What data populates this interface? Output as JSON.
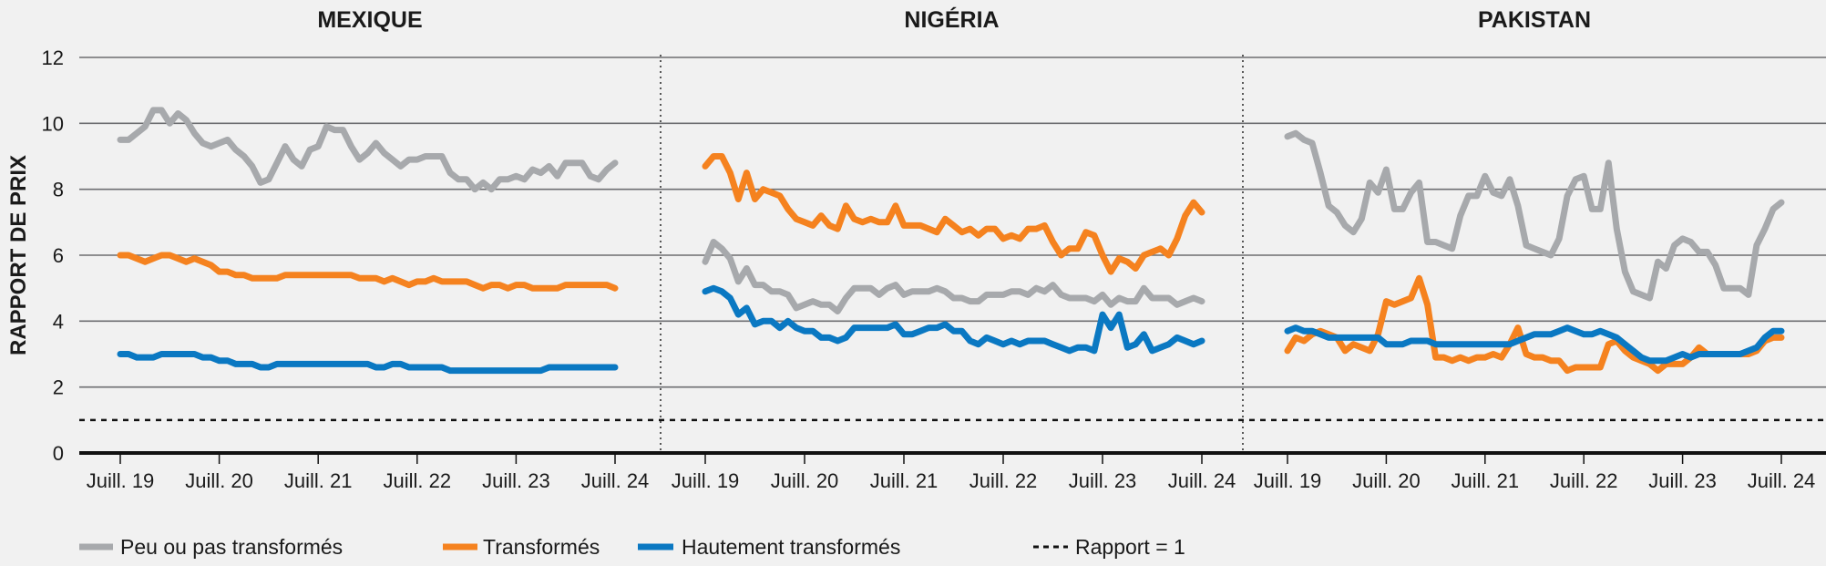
{
  "chart_data": {
    "type": "line",
    "ylabel": "RAPPORT DE PRIX",
    "ylim": [
      0,
      12
    ],
    "yticks": [
      "0",
      "2",
      "4",
      "6",
      "8",
      "10",
      "12"
    ],
    "xticks": [
      "Juill. 19",
      "Juill. 20",
      "Juill. 21",
      "Juill. 22",
      "Juill. 23",
      "Juill. 24"
    ],
    "x_unit": "monthly, index 0 = July 2019",
    "reference_line": {
      "label": "Rapport = 1",
      "value": 1
    },
    "legend": [
      "Peu ou pas transformés",
      "Transformés",
      "Hautement transformés",
      "Rapport = 1"
    ],
    "legend_placement": "bottom",
    "colors": {
      "peu": "#a7a9ac",
      "transformes": "#f5821f",
      "hautement": "#0a78c2"
    },
    "panels": [
      {
        "title": "MEXIQUE",
        "series": [
          {
            "name": "Peu ou pas transformés",
            "key": "peu",
            "values": [
              9.5,
              9.5,
              9.7,
              9.9,
              10.4,
              10.4,
              10.0,
              10.3,
              10.1,
              9.7,
              9.4,
              9.3,
              9.4,
              9.5,
              9.2,
              9.0,
              8.7,
              8.2,
              8.3,
              8.8,
              9.3,
              8.9,
              8.7,
              9.2,
              9.3,
              9.9,
              9.8,
              9.8,
              9.3,
              8.9,
              9.1,
              9.4,
              9.1,
              8.9,
              8.7,
              8.9,
              8.9,
              9.0,
              9.0,
              9.0,
              8.5,
              8.3,
              8.3,
              8.0,
              8.2,
              8.0,
              8.3,
              8.3,
              8.4,
              8.3,
              8.6,
              8.5,
              8.7,
              8.4,
              8.8,
              8.8,
              8.8,
              8.4,
              8.3,
              8.6,
              8.8
            ]
          },
          {
            "name": "Transformés",
            "key": "transformes",
            "values": [
              6.0,
              6.0,
              5.9,
              5.8,
              5.9,
              6.0,
              6.0,
              5.9,
              5.8,
              5.9,
              5.8,
              5.7,
              5.5,
              5.5,
              5.4,
              5.4,
              5.3,
              5.3,
              5.3,
              5.3,
              5.4,
              5.4,
              5.4,
              5.4,
              5.4,
              5.4,
              5.4,
              5.4,
              5.4,
              5.3,
              5.3,
              5.3,
              5.2,
              5.3,
              5.2,
              5.1,
              5.2,
              5.2,
              5.3,
              5.2,
              5.2,
              5.2,
              5.2,
              5.1,
              5.0,
              5.1,
              5.1,
              5.0,
              5.1,
              5.1,
              5.0,
              5.0,
              5.0,
              5.0,
              5.1,
              5.1,
              5.1,
              5.1,
              5.1,
              5.1,
              5.0
            ]
          },
          {
            "name": "Hautement transformés",
            "key": "hautement",
            "values": [
              3.0,
              3.0,
              2.9,
              2.9,
              2.9,
              3.0,
              3.0,
              3.0,
              3.0,
              3.0,
              2.9,
              2.9,
              2.8,
              2.8,
              2.7,
              2.7,
              2.7,
              2.6,
              2.6,
              2.7,
              2.7,
              2.7,
              2.7,
              2.7,
              2.7,
              2.7,
              2.7,
              2.7,
              2.7,
              2.7,
              2.7,
              2.6,
              2.6,
              2.7,
              2.7,
              2.6,
              2.6,
              2.6,
              2.6,
              2.6,
              2.5,
              2.5,
              2.5,
              2.5,
              2.5,
              2.5,
              2.5,
              2.5,
              2.5,
              2.5,
              2.5,
              2.5,
              2.6,
              2.6,
              2.6,
              2.6,
              2.6,
              2.6,
              2.6,
              2.6,
              2.6
            ]
          }
        ]
      },
      {
        "title": "NIGÉRIA",
        "series": [
          {
            "name": "Peu ou pas transformés",
            "key": "peu",
            "values": [
              5.8,
              6.4,
              6.2,
              5.9,
              5.2,
              5.6,
              5.1,
              5.1,
              4.9,
              4.9,
              4.8,
              4.4,
              4.5,
              4.6,
              4.5,
              4.5,
              4.3,
              4.7,
              5.0,
              5.0,
              5.0,
              4.8,
              5.0,
              5.1,
              4.8,
              4.9,
              4.9,
              4.9,
              5.0,
              4.9,
              4.7,
              4.7,
              4.6,
              4.6,
              4.8,
              4.8,
              4.8,
              4.9,
              4.9,
              4.8,
              5.0,
              4.9,
              5.1,
              4.8,
              4.7,
              4.7,
              4.7,
              4.6,
              4.8,
              4.5,
              4.7,
              4.6,
              4.6,
              5.0,
              4.7,
              4.7,
              4.7,
              4.5,
              4.6,
              4.7,
              4.6
            ]
          },
          {
            "name": "Transformés",
            "key": "transformes",
            "values": [
              8.7,
              9.0,
              9.0,
              8.5,
              7.7,
              8.5,
              7.7,
              8.0,
              7.9,
              7.8,
              7.4,
              7.1,
              7.0,
              6.9,
              7.2,
              6.9,
              6.8,
              7.5,
              7.1,
              7.0,
              7.1,
              7.0,
              7.0,
              7.5,
              6.9,
              6.9,
              6.9,
              6.8,
              6.7,
              7.1,
              6.9,
              6.7,
              6.8,
              6.6,
              6.8,
              6.8,
              6.5,
              6.6,
              6.5,
              6.8,
              6.8,
              6.9,
              6.4,
              6.0,
              6.2,
              6.2,
              6.7,
              6.6,
              6.0,
              5.5,
              5.9,
              5.8,
              5.6,
              6.0,
              6.1,
              6.2,
              6.0,
              6.5,
              7.2,
              7.6,
              7.3
            ]
          },
          {
            "name": "Hautement transformés",
            "key": "hautement",
            "values": [
              4.9,
              5.0,
              4.9,
              4.7,
              4.2,
              4.4,
              3.9,
              4.0,
              4.0,
              3.8,
              4.0,
              3.8,
              3.7,
              3.7,
              3.5,
              3.5,
              3.4,
              3.5,
              3.8,
              3.8,
              3.8,
              3.8,
              3.8,
              3.9,
              3.6,
              3.6,
              3.7,
              3.8,
              3.8,
              3.9,
              3.7,
              3.7,
              3.4,
              3.3,
              3.5,
              3.4,
              3.3,
              3.4,
              3.3,
              3.4,
              3.4,
              3.4,
              3.3,
              3.2,
              3.1,
              3.2,
              3.2,
              3.1,
              4.2,
              3.8,
              4.2,
              3.2,
              3.3,
              3.6,
              3.1,
              3.2,
              3.3,
              3.5,
              3.4,
              3.3,
              3.4
            ]
          }
        ]
      },
      {
        "title": "PAKISTAN",
        "series": [
          {
            "name": "Peu ou pas transformés",
            "key": "peu",
            "values": [
              9.6,
              9.7,
              9.5,
              9.4,
              8.5,
              7.5,
              7.3,
              6.9,
              6.7,
              7.1,
              8.2,
              7.9,
              8.6,
              7.4,
              7.4,
              7.9,
              8.2,
              6.4,
              6.4,
              6.3,
              6.2,
              7.2,
              7.8,
              7.8,
              8.4,
              7.9,
              7.8,
              8.3,
              7.5,
              6.3,
              6.2,
              6.1,
              6.0,
              6.5,
              7.8,
              8.3,
              8.4,
              7.4,
              7.4,
              8.8,
              6.8,
              5.5,
              4.9,
              4.8,
              4.7,
              5.8,
              5.6,
              6.3,
              6.5,
              6.4,
              6.1,
              6.1,
              5.7,
              5.0,
              5.0,
              5.0,
              4.8,
              6.3,
              6.8,
              7.4,
              7.6
            ]
          },
          {
            "name": "Transformés",
            "key": "transformes",
            "values": [
              3.1,
              3.5,
              3.4,
              3.6,
              3.7,
              3.6,
              3.5,
              3.1,
              3.3,
              3.2,
              3.1,
              3.6,
              4.6,
              4.5,
              4.6,
              4.7,
              5.3,
              4.5,
              2.9,
              2.9,
              2.8,
              2.9,
              2.8,
              2.9,
              2.9,
              3.0,
              2.9,
              3.3,
              3.8,
              3.0,
              2.9,
              2.9,
              2.8,
              2.8,
              2.5,
              2.6,
              2.6,
              2.6,
              2.6,
              3.3,
              3.4,
              3.1,
              2.9,
              2.8,
              2.7,
              2.5,
              2.7,
              2.7,
              2.7,
              2.9,
              3.2,
              3.0,
              3.0,
              3.0,
              3.0,
              3.0,
              3.0,
              3.1,
              3.4,
              3.5,
              3.5
            ]
          },
          {
            "name": "Hautement transformés",
            "key": "hautement",
            "values": [
              3.7,
              3.8,
              3.7,
              3.7,
              3.6,
              3.5,
              3.5,
              3.5,
              3.5,
              3.5,
              3.5,
              3.5,
              3.3,
              3.3,
              3.3,
              3.4,
              3.4,
              3.4,
              3.3,
              3.3,
              3.3,
              3.3,
              3.3,
              3.3,
              3.3,
              3.3,
              3.3,
              3.3,
              3.4,
              3.5,
              3.6,
              3.6,
              3.6,
              3.7,
              3.8,
              3.7,
              3.6,
              3.6,
              3.7,
              3.6,
              3.5,
              3.3,
              3.1,
              2.9,
              2.8,
              2.8,
              2.8,
              2.9,
              3.0,
              2.9,
              3.0,
              3.0,
              3.0,
              3.0,
              3.0,
              3.0,
              3.1,
              3.2,
              3.5,
              3.7,
              3.7
            ]
          }
        ]
      }
    ]
  }
}
